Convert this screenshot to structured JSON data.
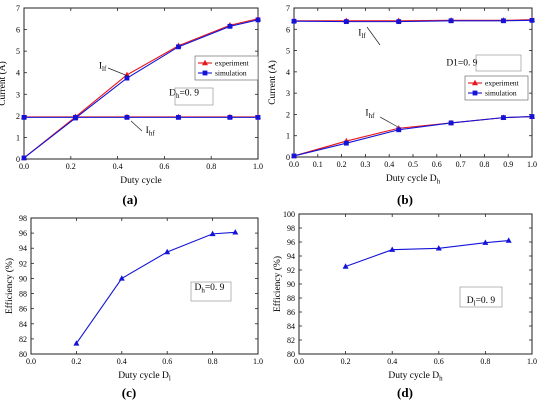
{
  "chart_data": [
    {
      "type": "line",
      "panel_label": "(a)",
      "xlabel": "Duty cycle",
      "ylabel": "Current  (A)",
      "xlim": [
        0.0,
        1.0
      ],
      "ylim": [
        0,
        7
      ],
      "x_ticks": [
        "0.0",
        "0.2",
        "0.4",
        "0.6",
        "0.8",
        "1.0"
      ],
      "y_ticks": [
        "0",
        "1",
        "2",
        "3",
        "4",
        "5",
        "6",
        "7"
      ],
      "legend_position": "top-right",
      "series": [
        {
          "name": "experiment",
          "group": "Ilf",
          "color": "#e8141c",
          "marker": "triangle",
          "x": [
            0.0,
            0.22,
            0.44,
            0.66,
            0.88,
            1.0
          ],
          "y": [
            0.05,
            1.95,
            3.9,
            5.25,
            6.2,
            6.5
          ]
        },
        {
          "name": "simulation",
          "group": "Ilf",
          "color": "#1414d8",
          "marker": "square",
          "x": [
            0.0,
            0.22,
            0.44,
            0.66,
            0.88,
            1.0
          ],
          "y": [
            0.05,
            1.9,
            3.75,
            5.2,
            6.15,
            6.45
          ]
        },
        {
          "name": "experiment",
          "group": "Ihf",
          "color": "#e8141c",
          "marker": "triangle",
          "x": [
            0.0,
            0.22,
            0.44,
            0.66,
            0.88,
            1.0
          ],
          "y": [
            1.95,
            1.95,
            1.95,
            1.95,
            1.95,
            1.95
          ]
        },
        {
          "name": "simulation",
          "group": "Ihf",
          "color": "#1414d8",
          "marker": "square",
          "x": [
            0.0,
            0.22,
            0.44,
            0.66,
            0.88,
            1.0
          ],
          "y": [
            1.93,
            1.93,
            1.93,
            1.93,
            1.93,
            1.93
          ]
        }
      ],
      "annotations": [
        {
          "main": "I",
          "sub": "lf",
          "at": [
            0.32,
            4.2
          ]
        },
        {
          "main": "I",
          "sub": "hf",
          "at": [
            0.52,
            1.2
          ]
        },
        {
          "main": "D",
          "sub": "h",
          "tail": "=0. 9",
          "at": [
            0.62,
            2.95
          ]
        }
      ]
    },
    {
      "type": "line",
      "panel_label": "(b)",
      "xlabel": "Duty cycle D",
      "xlabel_sub": "h",
      "ylabel": "Current  (A)",
      "xlim": [
        0.0,
        1.0
      ],
      "ylim": [
        0,
        7
      ],
      "x_ticks": [
        "0.0",
        "0.1",
        "0.2",
        "0.3",
        "0.4",
        "0.5",
        "0.6",
        "0.7",
        "0.8",
        "0.9",
        "1.0"
      ],
      "y_ticks": [
        "0",
        "1",
        "2",
        "3",
        "4",
        "5",
        "6",
        "7"
      ],
      "legend_position": "right",
      "series": [
        {
          "name": "experiment",
          "group": "Ilf",
          "color": "#e8141c",
          "marker": "triangle",
          "x": [
            0.0,
            0.22,
            0.44,
            0.66,
            0.88,
            1.0
          ],
          "y": [
            6.4,
            6.4,
            6.4,
            6.42,
            6.42,
            6.45
          ]
        },
        {
          "name": "simulation",
          "group": "Ilf",
          "color": "#1414d8",
          "marker": "square",
          "x": [
            0.0,
            0.22,
            0.44,
            0.66,
            0.88,
            1.0
          ],
          "y": [
            6.38,
            6.36,
            6.36,
            6.4,
            6.4,
            6.42
          ]
        },
        {
          "name": "experiment",
          "group": "Ihf",
          "color": "#e8141c",
          "marker": "triangle",
          "x": [
            0.0,
            0.22,
            0.44,
            0.66,
            0.88,
            1.0
          ],
          "y": [
            0.05,
            0.75,
            1.35,
            1.6,
            1.85,
            1.9
          ]
        },
        {
          "name": "simulation",
          "group": "Ihf",
          "color": "#1414d8",
          "marker": "square",
          "x": [
            0.0,
            0.22,
            0.44,
            0.66,
            0.88,
            1.0
          ],
          "y": [
            0.05,
            0.65,
            1.28,
            1.6,
            1.85,
            1.9
          ]
        }
      ],
      "annotations": [
        {
          "main": "I",
          "sub": "lf",
          "at": [
            0.27,
            5.7
          ]
        },
        {
          "main": "I",
          "sub": "hf",
          "at": [
            0.3,
            1.95
          ]
        },
        {
          "main": "D1=0. 9",
          "sub": "",
          "at": [
            0.64,
            4.3
          ]
        }
      ]
    },
    {
      "type": "line",
      "panel_label": "(c)",
      "xlabel": "Duty cycle D",
      "xlabel_sub": "l",
      "ylabel": "Efficiency  (%)",
      "xlim": [
        0.0,
        1.0
      ],
      "ylim": [
        80,
        98
      ],
      "x_ticks": [
        "0.0",
        "0.2",
        "0.4",
        "0.6",
        "0.8",
        "1.0"
      ],
      "y_ticks": [
        "80",
        "82",
        "84",
        "86",
        "88",
        "90",
        "92",
        "94",
        "96",
        "98"
      ],
      "series": [
        {
          "name": "",
          "color": "#1414d8",
          "marker": "triangle",
          "x": [
            0.2,
            0.4,
            0.6,
            0.8,
            0.9
          ],
          "y": [
            81.4,
            90.0,
            93.5,
            95.9,
            96.1
          ]
        }
      ],
      "annotations": [
        {
          "main": "D",
          "sub": "h",
          "tail": "=0. 9",
          "at": [
            0.72,
            88.5
          ]
        }
      ]
    },
    {
      "type": "line",
      "panel_label": "(d)",
      "xlabel": "Duty cycle D",
      "xlabel_sub": "h",
      "ylabel": "Efficiency  (%)",
      "xlim": [
        0.0,
        1.0
      ],
      "ylim": [
        80,
        100
      ],
      "x_ticks": [
        "0.0",
        "0.2",
        "0.4",
        "0.6",
        "0.8",
        "1.0"
      ],
      "y_ticks": [
        "80",
        "82",
        "84",
        "86",
        "88",
        "90",
        "92",
        "94",
        "96",
        "98",
        "100"
      ],
      "series": [
        {
          "name": "",
          "color": "#1414d8",
          "marker": "triangle",
          "x": [
            0.2,
            0.4,
            0.6,
            0.8,
            0.9
          ],
          "y": [
            92.5,
            94.9,
            95.1,
            95.9,
            96.2
          ]
        }
      ],
      "annotations": [
        {
          "main": "D",
          "sub": "l",
          "tail": "=0. 9",
          "at": [
            0.72,
            87.3
          ]
        }
      ]
    }
  ]
}
